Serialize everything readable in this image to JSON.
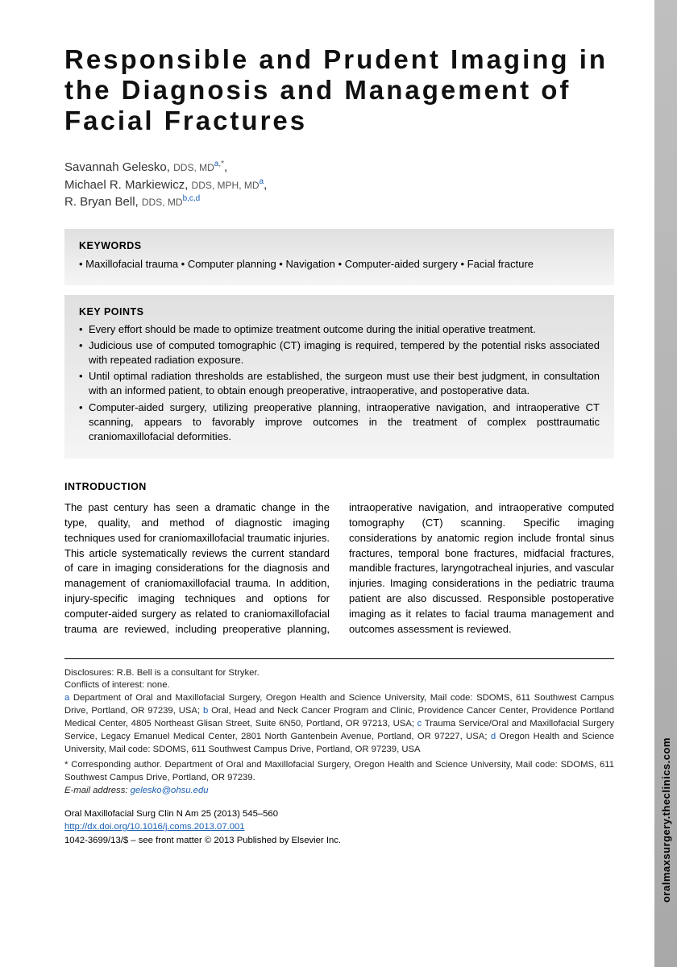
{
  "sideTab": "oralmaxsurgery.theclinics.com",
  "title": "Responsible and Prudent Imaging in the Diagnosis and Management of Facial Fractures",
  "authors": [
    {
      "name": "Savannah Gelesko",
      "degrees": "DDS, MD",
      "aff": "a",
      "corr": true
    },
    {
      "name": "Michael R. Markiewicz",
      "degrees": "DDS, MPH, MD",
      "aff": "a",
      "corr": false
    },
    {
      "name": "R. Bryan Bell",
      "degrees": "DDS, MD",
      "aff": "b,c,d",
      "corr": false
    }
  ],
  "keywordsHeading": "KEYWORDS",
  "keywords": [
    "Maxillofacial trauma",
    "Computer planning",
    "Navigation",
    "Computer-aided surgery",
    "Facial fracture"
  ],
  "keyPointsHeading": "KEY POINTS",
  "keyPoints": [
    "Every effort should be made to optimize treatment outcome during the initial operative treatment.",
    "Judicious use of computed tomographic (CT) imaging is required, tempered by the potential risks associated with repeated radiation exposure.",
    "Until optimal radiation thresholds are established, the surgeon must use their best judgment, in consultation with an informed patient, to obtain enough preoperative, intraoperative, and postoperative data.",
    "Computer-aided surgery, utilizing preoperative planning, intraoperative navigation, and intraoperative CT scanning, appears to favorably improve outcomes in the treatment of complex posttraumatic craniomaxillofacial deformities."
  ],
  "introHeading": "INTRODUCTION",
  "introText": "The past century has seen a dramatic change in the type, quality, and method of diagnostic imaging techniques used for craniomaxillofacial traumatic injuries. This article systematically reviews the current standard of care in imaging considerations for the diagnosis and management of craniomaxillofacial trauma. In addition, injury-specific imaging techniques and options for computer-aided surgery as related to craniomaxillofacial trauma are reviewed, including preoperative planning, intraoperative navigation, and intraoperative computed tomography (CT) scanning. Specific imaging considerations by anatomic region include frontal sinus fractures, temporal bone fractures, midfacial fractures, mandible fractures, laryngotracheal injuries, and vascular injuries. Imaging considerations in the pediatric trauma patient are also discussed. Responsible postoperative imaging as it relates to facial trauma management and outcomes assessment is reviewed.",
  "footer": {
    "disclosures": "Disclosures: R.B. Bell is a consultant for Stryker.",
    "conflicts": "Conflicts of interest: none.",
    "affiliations": {
      "a": "Department of Oral and Maxillofacial Surgery, Oregon Health and Science University, Mail code: SDOMS, 611 Southwest Campus Drive, Portland, OR 97239, USA;",
      "b": "Oral, Head and Neck Cancer Program and Clinic, Providence Cancer Center, Providence Portland Medical Center, 4805 Northeast Glisan Street, Suite 6N50, Portland, OR 97213, USA;",
      "c": "Trauma Service/Oral and Maxillofacial Surgery Service, Legacy Emanuel Medical Center, 2801 North Gantenbein Avenue, Portland, OR 97227, USA;",
      "d": "Oregon Health and Science University, Mail code: SDOMS, 611 Southwest Campus Drive, Portland, OR 97239, USA"
    },
    "corresponding": "* Corresponding author. Department of Oral and Maxillofacial Surgery, Oregon Health and Science University, Mail code: SDOMS, 611 Southwest Campus Drive, Portland, OR 97239.",
    "emailLabel": "E-mail address:",
    "email": "gelesko@ohsu.edu"
  },
  "journal": {
    "citation": "Oral Maxillofacial Surg Clin N Am 25 (2013) 545–560",
    "doi": "http://dx.doi.org/10.1016/j.coms.2013.07.001",
    "copyright": "1042-3699/13/$ – see front matter © 2013 Published by Elsevier Inc."
  }
}
